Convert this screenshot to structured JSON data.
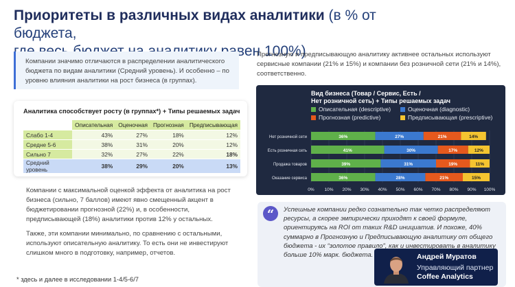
{
  "title": {
    "bold": "Приоритеты в различных видах аналитики",
    "rest_line1": " (в % от бюджета,",
    "line2": "где весь бюджет на аналитику равен 100%)"
  },
  "intro": "Компании значимо отличаются в распределении аналитического бюджета по видам аналитики (Средний уровень). И особенно – по уровню влияния аналитики на рост бизнеса (в группах).",
  "table": {
    "title": "Аналитика способствует росту (в группах*) + Типы решаемых задач",
    "headers": [
      "Описательная",
      "Оценочная",
      "Прогнозная",
      "Предписывающая"
    ],
    "rows": [
      {
        "label": "Слабо 1-4",
        "values": [
          "43%",
          "27%",
          "18%",
          "12%"
        ]
      },
      {
        "label": "Средне 5-6",
        "values": [
          "38%",
          "31%",
          "20%",
          "12%"
        ]
      },
      {
        "label": "Сильно 7",
        "values": [
          "32%",
          "27%",
          "22%",
          "18%"
        ]
      }
    ],
    "avg": {
      "label": "Средний уровень",
      "values": [
        "38%",
        "29%",
        "20%",
        "13%"
      ]
    }
  },
  "para1": "Компании с максимальной оценкой эффекта от аналитика на рост бизнеса (сильно, 7 баллов) имеют явно смещенный акцент в бюджетировании прогнозной (22%) и, в особенности, предписывающей (18%) аналитики против 12% у остальных.",
  "para2": "Также, эти компании минимально, по сравнению с остальными, используют описательную аналитику. То есть они не инвестируют слишком много в подготовку, например, отчетов.",
  "footnote": "* здесь и далее в исследовании 1-4/5-6/7",
  "right_text": "Прогнозную и предписывающую аналитику активнее остальных используют сервисные компании (21% и 15%) и компании без розничной сети (21% и 14%), соответственно.",
  "chart_data": {
    "type": "bar",
    "orientation": "horizontal",
    "stacked": true,
    "title": "Вид бизнеса (Товар / Сервис, Есть / Нет розничной сеть) + Типы решаемых задач",
    "categories": [
      "Нет розничной сети",
      "Есть розничная сеть",
      "Продажа товаров",
      "Оказание сервиса"
    ],
    "series": [
      {
        "name": "Описательная (descriptive)",
        "color": "#5fb04a",
        "values": [
          36,
          41,
          39,
          36
        ]
      },
      {
        "name": "Оценочная (diagnostic)",
        "color": "#3b79cf",
        "values": [
          27,
          30,
          31,
          28
        ]
      },
      {
        "name": "Прогнозная (predictive)",
        "color": "#e5591d",
        "values": [
          21,
          17,
          19,
          21
        ]
      },
      {
        "name": "Предписывающая (prescriptive)",
        "color": "#f4c430",
        "values": [
          14,
          12,
          11,
          15
        ]
      }
    ],
    "xlim": [
      0,
      100
    ],
    "xticks": [
      "0%",
      "10%",
      "20%",
      "30%",
      "40%",
      "50%",
      "60%",
      "70%",
      "80%",
      "90%",
      "100%"
    ]
  },
  "quote": "Успешные компании редко сознательно так четко распределяют ресурсы, а скорее эмпирически приходят к своей формуле, ориентируясь на ROI от таких R&D инициатив. И похоже, 40% суммарно в Прогнозную и Предписывающую аналитику от общего бюджета - их “золотое правило”, как и инвестировать в аналитику больше 10% марк. бюджета.",
  "author": {
    "name": "Андрей Муратов",
    "role": "Управляющий партнер",
    "company": "Coffee Analytics"
  }
}
